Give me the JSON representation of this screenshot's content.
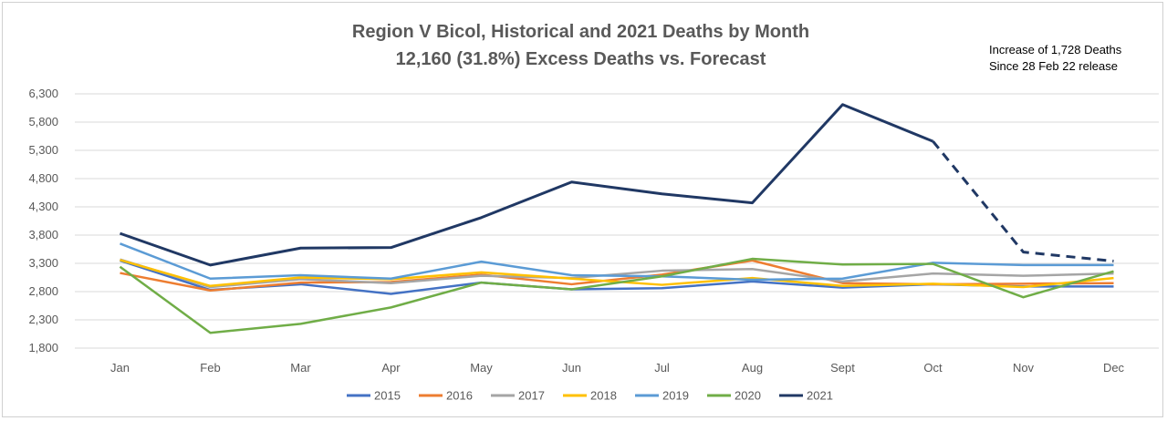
{
  "chart_data": {
    "type": "line",
    "title": "Region V Bicol, Historical and 2021 Deaths by Month",
    "subtitle": "12,160 (31.8%) Excess Deaths vs. Forecast",
    "annotation": [
      "Increase of 1,728 Deaths",
      "Since 28 Feb 22 release"
    ],
    "categories": [
      "Jan",
      "Feb",
      "Mar",
      "Apr",
      "May",
      "Jun",
      "Jul",
      "Aug",
      "Sept",
      "Oct",
      "Nov",
      "Dec"
    ],
    "ylim": [
      1800,
      6300
    ],
    "yticks": [
      1800,
      2300,
      2800,
      3300,
      3800,
      4300,
      4800,
      5300,
      5800,
      6300
    ],
    "ytick_labels": [
      "1,800",
      "2,300",
      "2,800",
      "3,300",
      "3,800",
      "4,300",
      "4,800",
      "5,300",
      "5,800",
      "6,300"
    ],
    "grid": true,
    "legend_position": "bottom",
    "series": [
      {
        "name": "2015",
        "color": "#4472c4",
        "values": [
          3350,
          2830,
          2930,
          2760,
          2960,
          2840,
          2860,
          2980,
          2870,
          2930,
          2890,
          2890
        ]
      },
      {
        "name": "2016",
        "color": "#ed7d31",
        "values": [
          3130,
          2820,
          2960,
          2970,
          3100,
          2930,
          3100,
          3350,
          2950,
          2930,
          2940,
          2950
        ]
      },
      {
        "name": "2017",
        "color": "#a5a5a5",
        "values": [
          3370,
          2880,
          3020,
          2950,
          3080,
          3040,
          3170,
          3200,
          2980,
          3120,
          3080,
          3120
        ]
      },
      {
        "name": "2018",
        "color": "#ffc000",
        "values": [
          3360,
          2900,
          3050,
          3020,
          3140,
          3030,
          2920,
          3040,
          2900,
          2940,
          2880,
          3040
        ]
      },
      {
        "name": "2019",
        "color": "#5b9bd5",
        "values": [
          3650,
          3030,
          3090,
          3030,
          3330,
          3090,
          3070,
          3010,
          3030,
          3310,
          3270,
          3270
        ]
      },
      {
        "name": "2020",
        "color": "#70ad47",
        "values": [
          3240,
          2070,
          2230,
          2520,
          2960,
          2840,
          3070,
          3380,
          3280,
          3290,
          2700,
          3160
        ]
      },
      {
        "name": "2021",
        "color": "#203864",
        "values": [
          3830,
          3270,
          3570,
          3580,
          4110,
          4740,
          4530,
          4370,
          6110,
          5460,
          3500,
          3340
        ],
        "dashed_from_index": 9
      }
    ]
  }
}
